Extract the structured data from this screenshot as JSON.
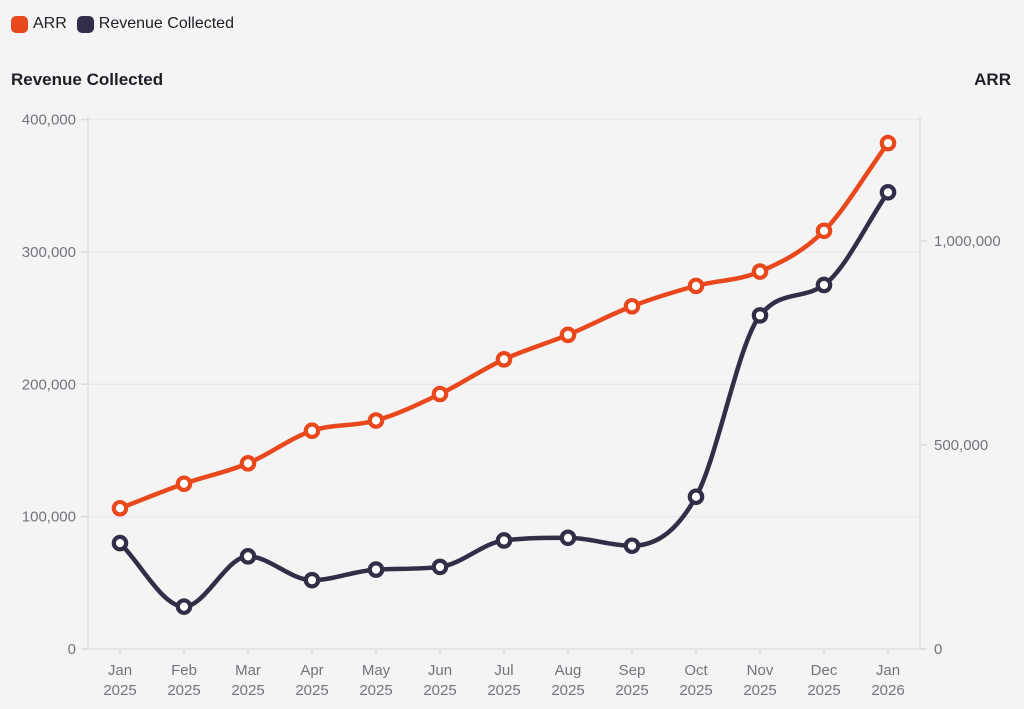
{
  "colors": {
    "background": "#f4f4f5",
    "gridline": "#eaeaee",
    "axis_line": "#e0e0e5",
    "tick_mark": "#d9d9df",
    "tick_text": "#73737d",
    "title_text": "#1f1f27",
    "marker_fill": "#ffffff"
  },
  "chart_data": {
    "type": "line",
    "curve": "monotone",
    "marker": "open-circle",
    "grid": "horizontal",
    "legend_position": "top-left",
    "categories": [
      "Jan 2025",
      "Feb 2025",
      "Mar 2025",
      "Apr 2025",
      "May 2025",
      "Jun 2025",
      "Jul 2025",
      "Aug 2025",
      "Sep 2025",
      "Oct 2025",
      "Nov 2025",
      "Dec 2025",
      "Jan 2026"
    ],
    "series": [
      {
        "name": "ARR",
        "axis": "right",
        "color": "#e8481c",
        "values": [
          345000,
          405000,
          455000,
          535000,
          560000,
          625000,
          710000,
          770000,
          840000,
          890000,
          925000,
          1025000,
          1240000
        ]
      },
      {
        "name": "Revenue Collected",
        "axis": "left",
        "color": "#332d47",
        "values": [
          80000,
          32000,
          70000,
          52000,
          60000,
          62000,
          82000,
          84000,
          78000,
          115000,
          252000,
          275000,
          345000
        ]
      }
    ],
    "left_axis": {
      "title": "Revenue Collected",
      "ticks": [
        0,
        100000,
        200000,
        300000,
        400000
      ],
      "range": [
        0,
        400000
      ]
    },
    "right_axis": {
      "title": "ARR",
      "ticks": [
        0,
        500000,
        1000000
      ],
      "range": [
        0,
        1320000
      ]
    }
  }
}
